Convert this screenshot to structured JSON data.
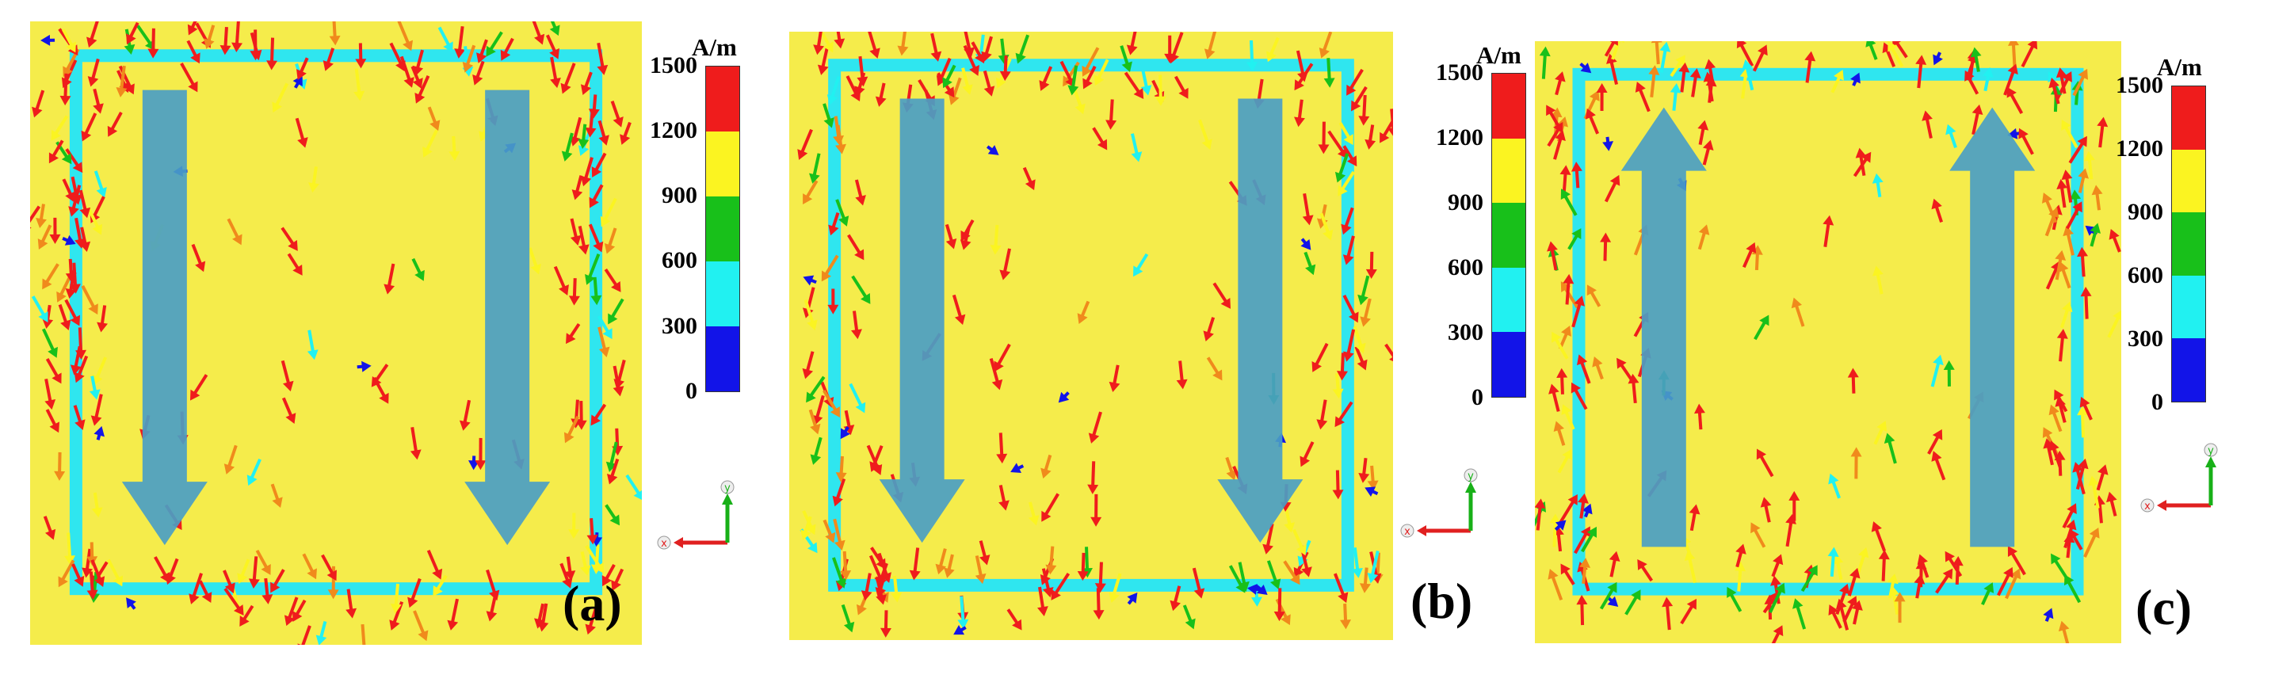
{
  "figure": {
    "panels": [
      {
        "id": "a",
        "label": "(a)",
        "flow_direction": "down"
      },
      {
        "id": "b",
        "label": "(b)",
        "flow_direction": "down"
      },
      {
        "id": "c",
        "label": "(c)",
        "flow_direction": "up"
      }
    ],
    "colorbar": {
      "unit": "A/m",
      "ticks": [
        "1500",
        "1200",
        "900",
        "600",
        "300",
        "0"
      ],
      "colors": [
        "#ef1c1c",
        "#fbf421",
        "#18c01a",
        "#21f1f1",
        "#1214e8"
      ]
    },
    "axes": {
      "x": "x",
      "y": "y",
      "x_color": "#e02020",
      "y_color": "#18b018"
    }
  }
}
